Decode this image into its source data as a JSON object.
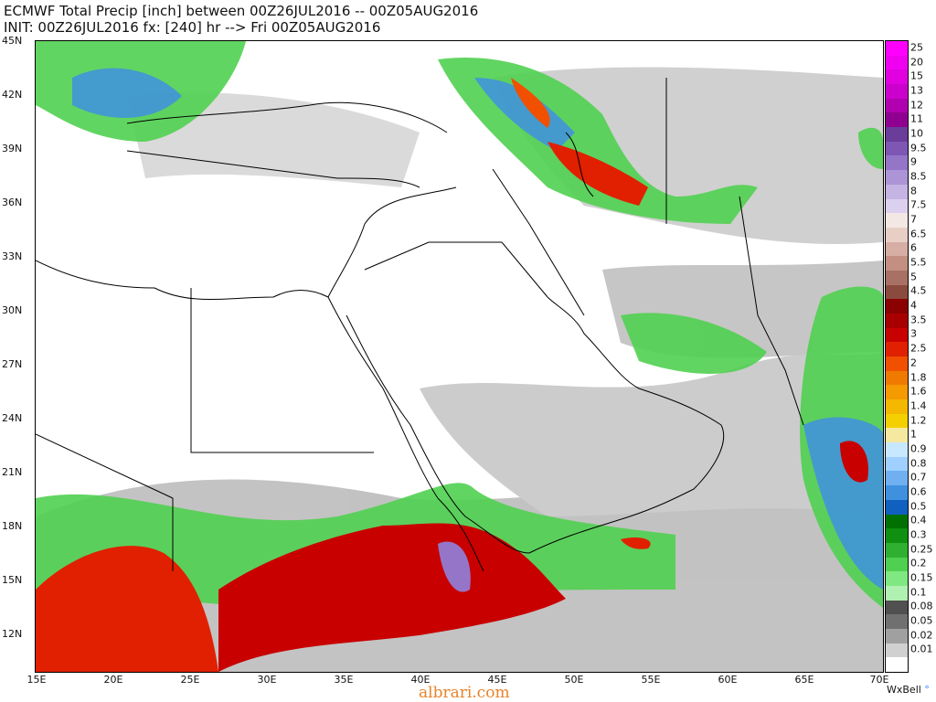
{
  "header": {
    "title": "ECMWF Total Precip [inch] between 00Z26JUL2016 -- 00Z05AUG2016",
    "init": "INIT: 00Z26JUL2016 fx: [240] hr --> Fri 00Z05AUG2016"
  },
  "axes": {
    "latitudes": [
      "45N",
      "42N",
      "39N",
      "36N",
      "33N",
      "30N",
      "27N",
      "24N",
      "21N",
      "18N",
      "15N",
      "12N"
    ],
    "longitudes": [
      "15E",
      "20E",
      "25E",
      "30E",
      "35E",
      "40E",
      "45E",
      "50E",
      "55E",
      "60E",
      "65E",
      "70E"
    ]
  },
  "legend": {
    "labels": [
      "25",
      "20",
      "15",
      "13",
      "12",
      "11",
      "10",
      "9.5",
      "9",
      "8.5",
      "8",
      "7.5",
      "7",
      "6.5",
      "6",
      "5.5",
      "5",
      "4.5",
      "4",
      "3.5",
      "3",
      "2.5",
      "2",
      "1.8",
      "1.6",
      "1.4",
      "1.2",
      "1",
      "0.9",
      "0.8",
      "0.7",
      "0.6",
      "0.5",
      "0.4",
      "0.3",
      "0.25",
      "0.2",
      "0.15",
      "0.1",
      "0.08",
      "0.05",
      "0.02",
      "0.01"
    ],
    "colors": [
      "#ff00ff",
      "#f000f0",
      "#e000e0",
      "#cc00cc",
      "#b000b0",
      "#900090",
      "#6a3d9a",
      "#7e57b5",
      "#9575c7",
      "#ac94d6",
      "#c4b3e3",
      "#dcd0ef",
      "#f4e8e4",
      "#e8cfc6",
      "#d6aea3",
      "#c28f82",
      "#a97065",
      "#8b4a3e",
      "#8b0000",
      "#a80000",
      "#c80000",
      "#e02000",
      "#f05000",
      "#f07a00",
      "#f59a00",
      "#f5b800",
      "#f5d000",
      "#f5e8a0",
      "#c8e8ff",
      "#a0d0ff",
      "#70b0f0",
      "#4090e0",
      "#1060c0",
      "#007000",
      "#109010",
      "#30b030",
      "#50d050",
      "#80e880",
      "#b0f0b0",
      "#505050",
      "#707070",
      "#a0a0a0",
      "#d0d0d0",
      "#ffffff"
    ]
  },
  "branding": {
    "name": "WxBell"
  },
  "watermark": "albrari.com"
}
